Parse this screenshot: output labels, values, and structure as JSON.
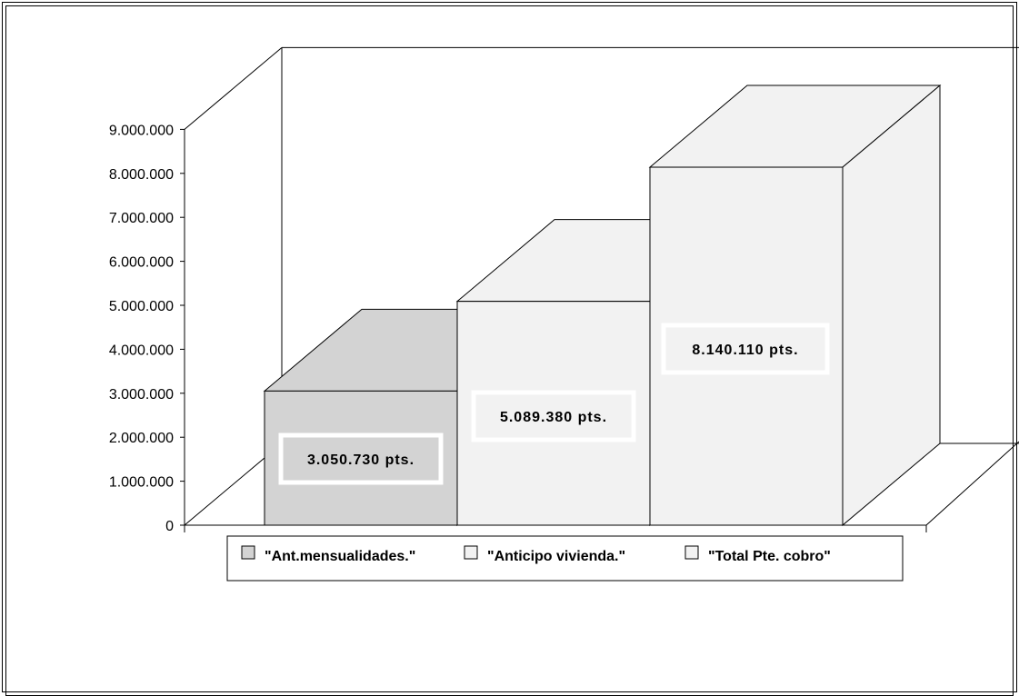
{
  "chart_data": {
    "type": "bar",
    "three_d": true,
    "title": "",
    "xlabel": "",
    "ylabel": "",
    "ylim": [
      0,
      9000000
    ],
    "y_ticks": [
      "0",
      "1.000.000",
      "2.000.000",
      "3.000.000",
      "4.000.000",
      "5.000.000",
      "6.000.000",
      "7.000.000",
      "8.000.000",
      "9.000.000"
    ],
    "grid": false,
    "legend_position": "bottom",
    "series": [
      {
        "name": "\"Ant.mensualidades.\"",
        "value": 3050730,
        "label": "3.050.730 pts.",
        "color": "#d3d3d3"
      },
      {
        "name": "\"Anticipo vivienda.\"",
        "value": 5089380,
        "label": "5.089.380 pts.",
        "color": "#f2f2f2"
      },
      {
        "name": "\"Total Pte. cobro\"",
        "value": 8140110,
        "label": "8.140.110 pts.",
        "color": "#f2f2f2"
      }
    ]
  }
}
